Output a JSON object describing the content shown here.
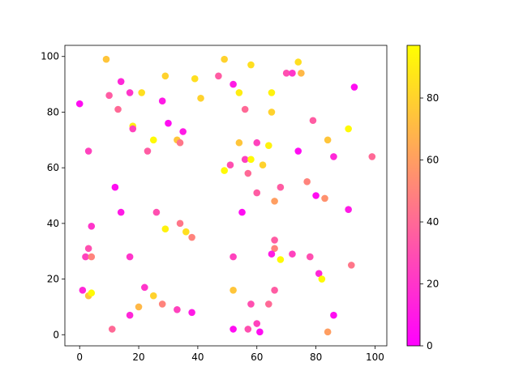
{
  "chart_data": {
    "type": "scatter",
    "title": "",
    "xlabel": "",
    "ylabel": "",
    "xlim": [
      -5,
      104
    ],
    "ylim": [
      -4,
      104
    ],
    "xticks": [
      0,
      20,
      40,
      60,
      80,
      100
    ],
    "yticks": [
      0,
      20,
      40,
      60,
      80,
      100
    ],
    "grid": false,
    "colormap": "spring",
    "colorbar": {
      "range": [
        0,
        97
      ],
      "ticks": [
        0,
        20,
        40,
        60,
        80
      ],
      "colors": [
        "#ff00ff",
        "#ffff00"
      ]
    },
    "points": [
      [
        0,
        83,
        5
      ],
      [
        9,
        99,
        75
      ],
      [
        10,
        86,
        35
      ],
      [
        14,
        91,
        15
      ],
      [
        13,
        81,
        40
      ],
      [
        17,
        87,
        20
      ],
      [
        21,
        87,
        85
      ],
      [
        29,
        93,
        80
      ],
      [
        28,
        84,
        10
      ],
      [
        18,
        75,
        90
      ],
      [
        18,
        74,
        25
      ],
      [
        30,
        76,
        5
      ],
      [
        25,
        70,
        95
      ],
      [
        33,
        70,
        75
      ],
      [
        34,
        69,
        45
      ],
      [
        35,
        73,
        10
      ],
      [
        23,
        66,
        35
      ],
      [
        3,
        66,
        25
      ],
      [
        39,
        92,
        85
      ],
      [
        41,
        85,
        80
      ],
      [
        47,
        93,
        35
      ],
      [
        49,
        99,
        80
      ],
      [
        52,
        90,
        10
      ],
      [
        54,
        87,
        90
      ],
      [
        58,
        97,
        85
      ],
      [
        56,
        81,
        40
      ],
      [
        65,
        87,
        92
      ],
      [
        65,
        80,
        80
      ],
      [
        70,
        94,
        30
      ],
      [
        72,
        94,
        20
      ],
      [
        74,
        98,
        85
      ],
      [
        75,
        94,
        70
      ],
      [
        79,
        77,
        35
      ],
      [
        93,
        89,
        5
      ],
      [
        74,
        66,
        5
      ],
      [
        84,
        70,
        75
      ],
      [
        86,
        64,
        15
      ],
      [
        91,
        74,
        95
      ],
      [
        99,
        64,
        40
      ],
      [
        54,
        69,
        75
      ],
      [
        60,
        69,
        25
      ],
      [
        64,
        68,
        92
      ],
      [
        49,
        59,
        95
      ],
      [
        51,
        61,
        30
      ],
      [
        56,
        63,
        25
      ],
      [
        58,
        63,
        95
      ],
      [
        62,
        61,
        80
      ],
      [
        57,
        58,
        40
      ],
      [
        60,
        51,
        35
      ],
      [
        68,
        53,
        35
      ],
      [
        66,
        48,
        60
      ],
      [
        77,
        55,
        50
      ],
      [
        80,
        50,
        5
      ],
      [
        83,
        49,
        55
      ],
      [
        91,
        45,
        10
      ],
      [
        12,
        53,
        5
      ],
      [
        14,
        44,
        10
      ],
      [
        26,
        44,
        30
      ],
      [
        34,
        40,
        45
      ],
      [
        36,
        37,
        85
      ],
      [
        38,
        35,
        50
      ],
      [
        29,
        38,
        92
      ],
      [
        55,
        44,
        5
      ],
      [
        4,
        39,
        20
      ],
      [
        3,
        31,
        30
      ],
      [
        2,
        28,
        25
      ],
      [
        4,
        28,
        50
      ],
      [
        17,
        28,
        20
      ],
      [
        52,
        28,
        25
      ],
      [
        66,
        34,
        35
      ],
      [
        66,
        31,
        50
      ],
      [
        65,
        29,
        10
      ],
      [
        68,
        27,
        95
      ],
      [
        72,
        29,
        25
      ],
      [
        78,
        28,
        30
      ],
      [
        81,
        22,
        15
      ],
      [
        82,
        20,
        95
      ],
      [
        92,
        25,
        45
      ],
      [
        1,
        16,
        15
      ],
      [
        3,
        14,
        75
      ],
      [
        4,
        15,
        95
      ],
      [
        22,
        17,
        20
      ],
      [
        25,
        14,
        80
      ],
      [
        20,
        10,
        70
      ],
      [
        28,
        11,
        50
      ],
      [
        11,
        2,
        40
      ],
      [
        17,
        7,
        15
      ],
      [
        33,
        9,
        25
      ],
      [
        38,
        8,
        10
      ],
      [
        52,
        16,
        75
      ],
      [
        52,
        2,
        5
      ],
      [
        58,
        11,
        30
      ],
      [
        64,
        11,
        40
      ],
      [
        66,
        16,
        35
      ],
      [
        60,
        4,
        25
      ],
      [
        57,
        2,
        30
      ],
      [
        61,
        1,
        5
      ],
      [
        86,
        7,
        5
      ],
      [
        84,
        1,
        60
      ]
    ]
  }
}
